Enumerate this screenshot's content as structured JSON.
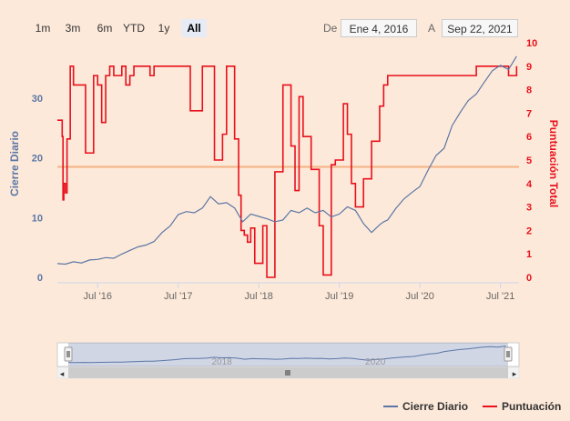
{
  "range_selector": {
    "buttons": [
      "1m",
      "3m",
      "6m",
      "YTD",
      "1y",
      "All"
    ],
    "selected": "All",
    "from_label": "De",
    "from_value": "Ene 4, 2016",
    "to_label": "A",
    "to_value": "Sep 22, 2021"
  },
  "legend": {
    "cierre_label": "Cierre Diario",
    "puntuacion_label": "Puntuación"
  },
  "colors": {
    "cierre": "#5b77a6",
    "puntuacion": "#e8101c",
    "background": "#fde9d9",
    "plotline": "#f4b183"
  },
  "chart_data": {
    "type": "line",
    "title": "",
    "x_range": [
      "2016-01-04",
      "2021-09-22"
    ],
    "x_ticks": [
      "Jul '16",
      "Jul '17",
      "Jul '18",
      "Jul '19",
      "Jul '20",
      "Jul '21"
    ],
    "y_left": {
      "label": "Cierre Diario",
      "ticks": [
        0,
        10,
        20,
        30
      ],
      "range": [
        -1,
        38
      ]
    },
    "y_right": {
      "label": "Puntuación Total",
      "ticks": [
        0,
        1,
        2,
        3,
        4,
        5,
        6,
        7,
        8,
        9,
        10
      ],
      "range": [
        0,
        10
      ]
    },
    "reference_line": {
      "axis": "y_left",
      "value": 18.5
    },
    "navigator": {
      "ticks": [
        "2018",
        "2020"
      ]
    },
    "series": [
      {
        "name": "Cierre Diario",
        "axis": "left",
        "x": [
          2016.0,
          2016.1,
          2016.2,
          2016.3,
          2016.4,
          2016.5,
          2016.6,
          2016.7,
          2016.8,
          2016.9,
          2017.0,
          2017.1,
          2017.2,
          2017.3,
          2017.4,
          2017.5,
          2017.6,
          2017.7,
          2017.8,
          2017.9,
          2018.0,
          2018.1,
          2018.2,
          2018.3,
          2018.4,
          2018.5,
          2018.6,
          2018.7,
          2018.8,
          2018.9,
          2019.0,
          2019.1,
          2019.2,
          2019.3,
          2019.4,
          2019.5,
          2019.6,
          2019.7,
          2019.8,
          2019.9,
          2020.0,
          2020.05,
          2020.1,
          2020.2,
          2020.3,
          2020.4,
          2020.5,
          2020.6,
          2020.7,
          2020.8,
          2020.9,
          2021.0,
          2021.1,
          2021.2,
          2021.3,
          2021.4,
          2021.5,
          2021.6,
          2021.7
        ],
        "values": [
          2.3,
          2.2,
          2.6,
          2.4,
          2.9,
          3.0,
          3.3,
          3.2,
          3.9,
          4.5,
          5.1,
          5.4,
          6.0,
          7.5,
          8.6,
          10.5,
          11.0,
          10.8,
          11.6,
          13.5,
          12.3,
          12.5,
          11.6,
          9.3,
          10.6,
          10.2,
          9.8,
          9.3,
          9.6,
          11.2,
          10.8,
          11.6,
          10.8,
          11.2,
          10.1,
          10.6,
          11.8,
          11.2,
          9.0,
          7.5,
          8.8,
          9.3,
          9.6,
          11.5,
          13.1,
          14.2,
          15.2,
          17.9,
          20.4,
          21.6,
          25.4,
          27.6,
          29.6,
          30.7,
          32.7,
          34.6,
          35.5,
          34.8,
          37.0
        ]
      },
      {
        "name": "Puntuación",
        "axis": "right",
        "x": [
          2016.0,
          2016.06,
          2016.07,
          2016.08,
          2016.1,
          2016.12,
          2016.16,
          2016.2,
          2016.25,
          2016.35,
          2016.45,
          2016.5,
          2016.55,
          2016.6,
          2016.65,
          2016.7,
          2016.8,
          2016.85,
          2016.9,
          2016.95,
          2017.05,
          2017.15,
          2017.2,
          2017.3,
          2017.45,
          2017.6,
          2017.65,
          2017.8,
          2017.9,
          2017.95,
          2018.05,
          2018.1,
          2018.2,
          2018.25,
          2018.28,
          2018.32,
          2018.36,
          2018.4,
          2018.45,
          2018.55,
          2018.6,
          2018.7,
          2018.8,
          2018.9,
          2018.95,
          2019.0,
          2019.05,
          2019.15,
          2019.25,
          2019.3,
          2019.4,
          2019.45,
          2019.55,
          2019.6,
          2019.65,
          2019.7,
          2019.8,
          2019.9,
          2020.0,
          2020.05,
          2020.1,
          2020.2,
          2020.3,
          2020.4,
          2020.5,
          2020.6,
          2020.7,
          2020.8,
          2020.9,
          2021.0,
          2021.2,
          2021.4,
          2021.5,
          2021.6,
          2021.7
        ],
        "values": [
          6.7,
          6.0,
          3.3,
          4.0,
          3.6,
          5.9,
          9.0,
          8.2,
          8.2,
          5.3,
          8.6,
          8.2,
          6.6,
          8.6,
          9.0,
          8.6,
          9.0,
          8.2,
          8.6,
          9.0,
          9.0,
          8.6,
          9.0,
          9.0,
          9.0,
          9.0,
          7.1,
          9.0,
          9.0,
          5.0,
          6.1,
          9.0,
          5.9,
          3.5,
          2.0,
          1.8,
          1.5,
          2.1,
          0.6,
          2.2,
          0.0,
          4.5,
          8.2,
          5.6,
          3.7,
          7.7,
          6.0,
          4.6,
          2.2,
          0.1,
          4.8,
          5.0,
          7.4,
          6.1,
          4.0,
          3.0,
          4.2,
          5.8,
          7.3,
          8.2,
          8.6,
          8.6,
          8.6,
          8.6,
          8.6,
          8.6,
          8.6,
          8.6,
          8.6,
          8.6,
          9.0,
          9.0,
          9.0,
          8.6,
          9.0
        ]
      }
    ]
  }
}
